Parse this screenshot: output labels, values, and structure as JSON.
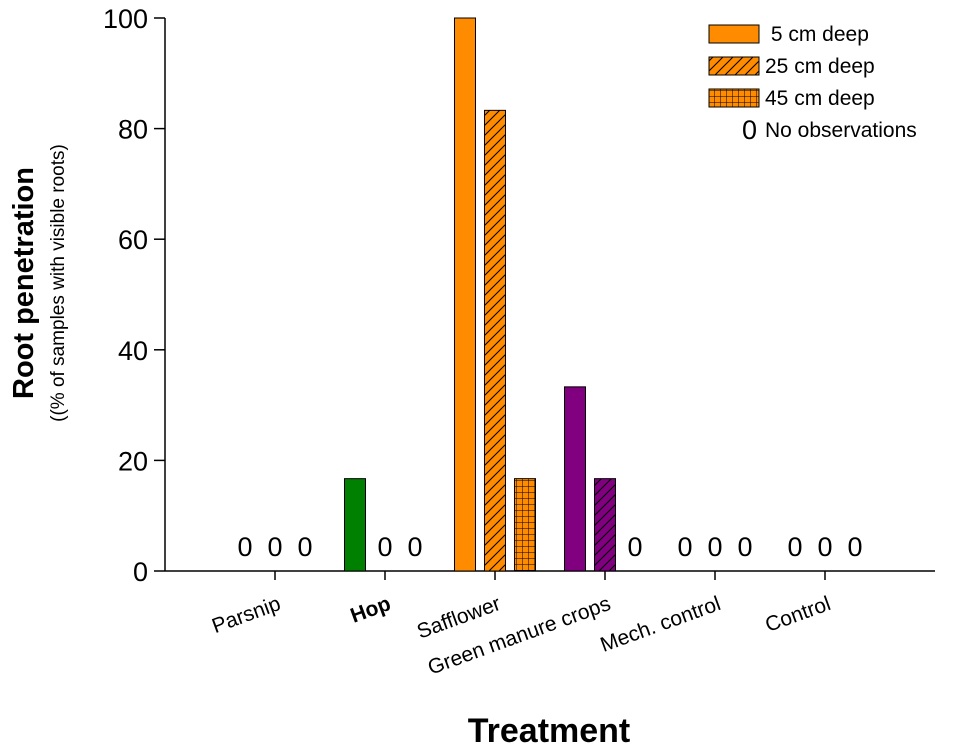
{
  "chart_data": {
    "type": "bar",
    "ylabel": "Root penetration",
    "ylabel_sub": "((% of samples with visible roots)",
    "xlabel": "Treatment",
    "ylim": [
      0,
      100
    ],
    "yticks": [
      0,
      20,
      40,
      60,
      80,
      100
    ],
    "grid": false,
    "legend_position": "top-right",
    "categories": [
      "Parsnip",
      "Hop",
      "Safflower",
      "Green manure crops",
      "Mech. control",
      "Control"
    ],
    "bold_categories": [
      "Hop"
    ],
    "category_colors": [
      "#ff8c00",
      "#008000",
      "#ff8c00",
      "#800080",
      "#ff8c00",
      "#ff8c00"
    ],
    "series": [
      {
        "name": " 5 cm deep",
        "pattern": "solid",
        "values": [
          null,
          16.7,
          100,
          33.3,
          null,
          null
        ]
      },
      {
        "name": "25 cm deep",
        "pattern": "hatch",
        "values": [
          null,
          null,
          83.3,
          16.7,
          null,
          null
        ]
      },
      {
        "name": "45 cm deep",
        "pattern": "grid",
        "values": [
          null,
          null,
          16.7,
          null,
          null,
          null
        ]
      }
    ],
    "zero_markers": [
      {
        "category": 0,
        "series": 0,
        "text": "0"
      },
      {
        "category": 0,
        "series": 1,
        "text": "0"
      },
      {
        "category": 0,
        "series": 2,
        "text": "0"
      },
      {
        "category": 1,
        "series": 1,
        "text": "0"
      },
      {
        "category": 1,
        "series": 2,
        "text": "0"
      },
      {
        "category": 3,
        "series": 2,
        "text": "0"
      },
      {
        "category": 4,
        "series": 0,
        "text": "0"
      },
      {
        "category": 4,
        "series": 1,
        "text": "0"
      },
      {
        "category": 4,
        "series": 2,
        "text": "0"
      },
      {
        "category": 5,
        "series": 0,
        "text": "0"
      },
      {
        "category": 5,
        "series": 1,
        "text": "0"
      },
      {
        "category": 5,
        "series": 2,
        "text": "0"
      }
    ],
    "legend_extra": {
      "symbol": "0",
      "label": "No observations"
    },
    "legend_color": "#ff8c00"
  }
}
